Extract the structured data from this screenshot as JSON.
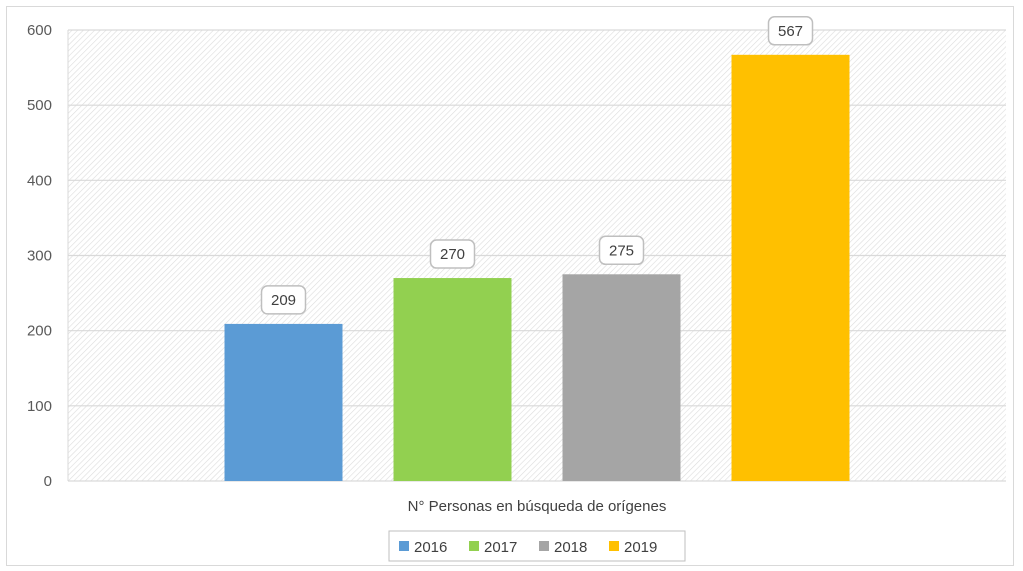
{
  "chart_data": {
    "type": "bar",
    "title": "",
    "xlabel": "N° Personas en búsqueda de orígenes",
    "ylabel": "",
    "categories": [
      "N° Personas en búsqueda de orígenes"
    ],
    "series": [
      {
        "name": "2016",
        "values": [
          209
        ],
        "color": "#5b9bd5"
      },
      {
        "name": "2017",
        "values": [
          270
        ],
        "color": "#92d050"
      },
      {
        "name": "2018",
        "values": [
          275
        ],
        "color": "#a5a5a5"
      },
      {
        "name": "2019",
        "values": [
          567
        ],
        "color": "#ffc000"
      }
    ],
    "ylim": [
      0,
      600
    ],
    "yticks": [
      0,
      100,
      200,
      300,
      400,
      500,
      600
    ],
    "grid": true,
    "legend": "bottom",
    "data_labels": true,
    "plot_background": "diagonal-hatch"
  }
}
